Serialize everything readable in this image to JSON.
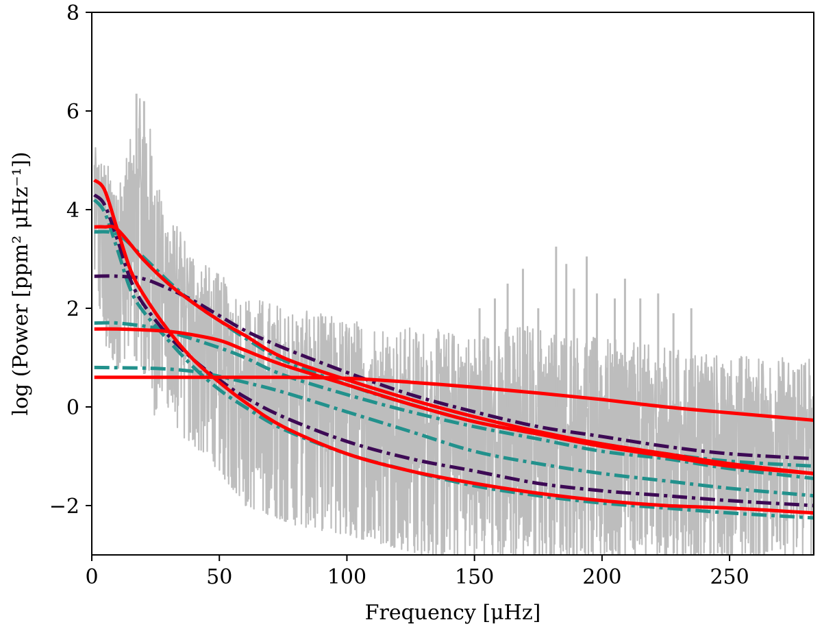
{
  "chart_data": {
    "type": "line",
    "title": "",
    "xlabel": "Frequency [μHz]",
    "ylabel": "log (Power [ppm² μHz⁻¹])",
    "xlim": [
      0,
      283
    ],
    "ylim": [
      -3,
      8
    ],
    "xticks": [
      0,
      50,
      100,
      150,
      200,
      250
    ],
    "yticks": [
      -2,
      0,
      2,
      4,
      6,
      8
    ],
    "xtick_labels": [
      "0",
      "50",
      "100",
      "150",
      "200",
      "250"
    ],
    "ytick_labels": [
      "−2",
      "0",
      "2",
      "4",
      "6",
      "8"
    ],
    "grid": false,
    "legend": "none",
    "colors": {
      "spectrum": "#bdbdbd",
      "red": "#ff0000",
      "purple": "#3d0a55",
      "teal": "#22918c"
    },
    "spectrum": {
      "name": "power spectrum",
      "style": "solid",
      "envelope": [
        {
          "x": 1,
          "upper": 5.3,
          "lower": 2.6
        },
        {
          "x": 5,
          "upper": 5.0,
          "lower": 1.2
        },
        {
          "x": 10,
          "upper": 4.7,
          "lower": 0.8
        },
        {
          "x": 15,
          "upper": 5.4,
          "lower": 0.6
        },
        {
          "x": 18,
          "upper": 6.3,
          "lower": 1.0
        },
        {
          "x": 21,
          "upper": 6.2,
          "lower": 0.6
        },
        {
          "x": 24,
          "upper": 5.4,
          "lower": -0.2
        },
        {
          "x": 28,
          "upper": 4.0,
          "lower": 0.2
        },
        {
          "x": 35,
          "upper": 3.6,
          "lower": -0.6
        },
        {
          "x": 45,
          "upper": 2.9,
          "lower": -1.0
        },
        {
          "x": 60,
          "upper": 2.3,
          "lower": -2.0
        },
        {
          "x": 80,
          "upper": 2.0,
          "lower": -2.4
        },
        {
          "x": 100,
          "upper": 1.8,
          "lower": -2.6
        },
        {
          "x": 130,
          "upper": 1.6,
          "lower": -3.0
        },
        {
          "x": 150,
          "upper": 1.5,
          "lower": -3.0
        },
        {
          "x": 170,
          "upper": 1.7,
          "lower": -3.0
        },
        {
          "x": 200,
          "upper": 1.4,
          "lower": -3.0
        },
        {
          "x": 240,
          "upper": 1.1,
          "lower": -3.0
        },
        {
          "x": 283,
          "upper": 1.0,
          "lower": -3.0
        }
      ],
      "peaks": [
        {
          "x": 17.5,
          "y": 6.35
        },
        {
          "x": 20.5,
          "y": 6.2
        },
        {
          "x": 152,
          "y": 2.0
        },
        {
          "x": 158,
          "y": 2.2
        },
        {
          "x": 163,
          "y": 2.5
        },
        {
          "x": 169,
          "y": 2.8
        },
        {
          "x": 175,
          "y": 2.0
        },
        {
          "x": 182,
          "y": 3.25
        },
        {
          "x": 186,
          "y": 2.9
        },
        {
          "x": 189,
          "y": 2.4
        },
        {
          "x": 194,
          "y": 3.05
        },
        {
          "x": 198,
          "y": 2.3
        },
        {
          "x": 205,
          "y": 2.2
        },
        {
          "x": 209,
          "y": 2.6
        },
        {
          "x": 215,
          "y": 2.2
        },
        {
          "x": 222,
          "y": 2.3
        },
        {
          "x": 228,
          "y": 1.9
        },
        {
          "x": 235,
          "y": 2.0
        }
      ]
    },
    "series": [
      {
        "name": "red model 1",
        "color": "red",
        "style": "solid",
        "values": [
          [
            1,
            4.6
          ],
          [
            5,
            4.4
          ],
          [
            10,
            3.6
          ],
          [
            15,
            2.8
          ],
          [
            20,
            2.3
          ],
          [
            30,
            1.55
          ],
          [
            40,
            0.95
          ],
          [
            50,
            0.5
          ],
          [
            60,
            0.1
          ],
          [
            75,
            -0.4
          ],
          [
            100,
            -0.95
          ],
          [
            125,
            -1.3
          ],
          [
            150,
            -1.55
          ],
          [
            175,
            -1.75
          ],
          [
            200,
            -1.9
          ],
          [
            225,
            -2.0
          ],
          [
            250,
            -2.05
          ],
          [
            283,
            -2.15
          ]
        ]
      },
      {
        "name": "red model 2",
        "color": "red",
        "style": "solid",
        "values": [
          [
            1,
            3.65
          ],
          [
            5,
            3.65
          ],
          [
            10,
            3.6
          ],
          [
            20,
            3.0
          ],
          [
            30,
            2.5
          ],
          [
            40,
            2.1
          ],
          [
            50,
            1.75
          ],
          [
            60,
            1.45
          ],
          [
            75,
            1.0
          ],
          [
            100,
            0.55
          ],
          [
            125,
            0.15
          ],
          [
            150,
            -0.2
          ],
          [
            175,
            -0.5
          ],
          [
            200,
            -0.75
          ],
          [
            225,
            -0.95
          ],
          [
            250,
            -1.15
          ],
          [
            283,
            -1.35
          ]
        ]
      },
      {
        "name": "red model 3",
        "color": "red",
        "style": "solid",
        "values": [
          [
            1,
            1.58
          ],
          [
            10,
            1.58
          ],
          [
            25,
            1.55
          ],
          [
            35,
            1.5
          ],
          [
            50,
            1.35
          ],
          [
            60,
            1.15
          ],
          [
            75,
            0.85
          ],
          [
            100,
            0.45
          ],
          [
            125,
            0.05
          ],
          [
            150,
            -0.3
          ],
          [
            175,
            -0.55
          ],
          [
            200,
            -0.8
          ],
          [
            225,
            -1.0
          ],
          [
            250,
            -1.2
          ],
          [
            283,
            -1.35
          ]
        ]
      },
      {
        "name": "red model 4",
        "color": "red",
        "style": "solid",
        "values": [
          [
            1,
            0.6
          ],
          [
            25,
            0.6
          ],
          [
            50,
            0.6
          ],
          [
            75,
            0.6
          ],
          [
            100,
            0.58
          ],
          [
            125,
            0.5
          ],
          [
            150,
            0.4
          ],
          [
            175,
            0.28
          ],
          [
            200,
            0.15
          ],
          [
            225,
            0.0
          ],
          [
            250,
            -0.12
          ],
          [
            283,
            -0.27
          ]
        ]
      },
      {
        "name": "purple model 1",
        "color": "purple",
        "style": "dashdot",
        "values": [
          [
            1,
            4.3
          ],
          [
            5,
            4.1
          ],
          [
            10,
            3.4
          ],
          [
            15,
            2.6
          ],
          [
            20,
            2.1
          ],
          [
            30,
            1.45
          ],
          [
            40,
            0.95
          ],
          [
            50,
            0.55
          ],
          [
            60,
            0.2
          ],
          [
            75,
            -0.2
          ],
          [
            100,
            -0.7
          ],
          [
            125,
            -1.05
          ],
          [
            150,
            -1.3
          ],
          [
            175,
            -1.55
          ],
          [
            200,
            -1.7
          ],
          [
            225,
            -1.8
          ],
          [
            250,
            -1.9
          ],
          [
            283,
            -2.0
          ]
        ]
      },
      {
        "name": "purple model 2",
        "color": "purple",
        "style": "dashdot",
        "values": [
          [
            1,
            2.65
          ],
          [
            10,
            2.65
          ],
          [
            20,
            2.6
          ],
          [
            30,
            2.4
          ],
          [
            40,
            2.15
          ],
          [
            50,
            1.85
          ],
          [
            60,
            1.55
          ],
          [
            75,
            1.2
          ],
          [
            100,
            0.7
          ],
          [
            125,
            0.25
          ],
          [
            150,
            -0.1
          ],
          [
            175,
            -0.4
          ],
          [
            200,
            -0.6
          ],
          [
            225,
            -0.8
          ],
          [
            250,
            -0.95
          ],
          [
            283,
            -1.05
          ]
        ]
      },
      {
        "name": "teal model 1",
        "color": "teal",
        "style": "dashdot",
        "values": [
          [
            1,
            4.2
          ],
          [
            5,
            3.95
          ],
          [
            10,
            3.2
          ],
          [
            15,
            2.4
          ],
          [
            20,
            1.95
          ],
          [
            30,
            1.35
          ],
          [
            40,
            0.8
          ],
          [
            50,
            0.35
          ],
          [
            60,
            0.0
          ],
          [
            75,
            -0.45
          ],
          [
            100,
            -0.95
          ],
          [
            125,
            -1.3
          ],
          [
            150,
            -1.6
          ],
          [
            175,
            -1.8
          ],
          [
            200,
            -1.95
          ],
          [
            225,
            -2.05
          ],
          [
            250,
            -2.15
          ],
          [
            283,
            -2.25
          ]
        ]
      },
      {
        "name": "teal model 2",
        "color": "teal",
        "style": "dashdot",
        "values": [
          [
            1,
            3.55
          ],
          [
            10,
            3.5
          ],
          [
            20,
            3.05
          ],
          [
            30,
            2.55
          ],
          [
            40,
            2.1
          ],
          [
            50,
            1.75
          ],
          [
            60,
            1.4
          ],
          [
            75,
            0.95
          ],
          [
            100,
            0.45
          ],
          [
            125,
            0.05
          ],
          [
            150,
            -0.3
          ],
          [
            175,
            -0.55
          ],
          [
            200,
            -0.75
          ],
          [
            225,
            -0.95
          ],
          [
            250,
            -1.1
          ],
          [
            283,
            -1.2
          ]
        ]
      },
      {
        "name": "teal model 3",
        "color": "teal",
        "style": "dashdot",
        "values": [
          [
            1,
            1.7
          ],
          [
            10,
            1.7
          ],
          [
            25,
            1.6
          ],
          [
            35,
            1.45
          ],
          [
            50,
            1.2
          ],
          [
            60,
            1.0
          ],
          [
            75,
            0.65
          ],
          [
            100,
            0.25
          ],
          [
            125,
            -0.1
          ],
          [
            150,
            -0.4
          ],
          [
            175,
            -0.65
          ],
          [
            200,
            -0.9
          ],
          [
            225,
            -1.05
          ],
          [
            250,
            -1.25
          ],
          [
            283,
            -1.45
          ]
        ]
      },
      {
        "name": "teal model 4",
        "color": "teal",
        "style": "dashdot",
        "values": [
          [
            1,
            0.8
          ],
          [
            25,
            0.78
          ],
          [
            40,
            0.72
          ],
          [
            50,
            0.62
          ],
          [
            60,
            0.5
          ],
          [
            75,
            0.3
          ],
          [
            100,
            -0.1
          ],
          [
            125,
            -0.5
          ],
          [
            150,
            -0.9
          ],
          [
            175,
            -1.15
          ],
          [
            200,
            -1.35
          ],
          [
            225,
            -1.5
          ],
          [
            250,
            -1.65
          ],
          [
            283,
            -1.8
          ]
        ]
      }
    ]
  }
}
